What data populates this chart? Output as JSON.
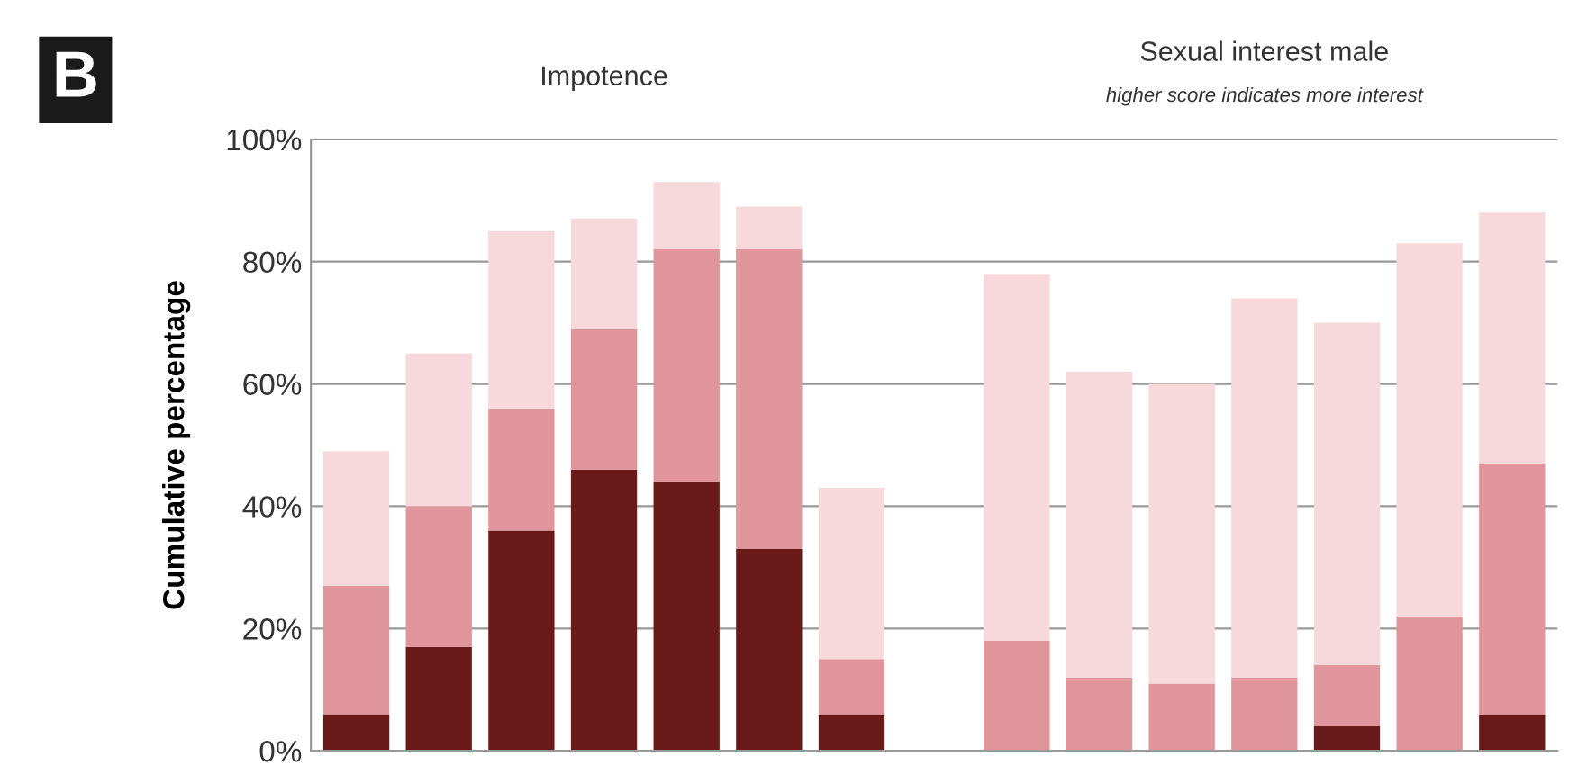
{
  "chart_data": {
    "type": "bar",
    "stacked": true,
    "ylabel": "Cumulative percentage",
    "annotations": [
      "B",
      "Impotence",
      "Sexual interest male",
      "higher score indicates more interest"
    ],
    "categories": [
      null,
      null,
      null,
      null,
      null,
      null,
      null,
      null,
      null,
      null,
      null,
      null,
      null,
      null,
      null
    ],
    "series": [
      {
        "color": "#6b1a1a",
        "values": [
          6,
          17,
          36,
          46,
          44,
          33,
          6,
          null,
          0,
          0,
          0,
          0,
          4,
          0,
          6
        ]
      },
      {
        "color": "#e0959a",
        "values": [
          21,
          23,
          20,
          23,
          38,
          49,
          9,
          null,
          18,
          12,
          11,
          12,
          10,
          22,
          41
        ]
      },
      {
        "color": "#f7d9dc",
        "values": [
          22,
          25,
          29,
          18,
          11,
          7,
          28,
          null,
          60,
          50,
          49,
          62,
          56,
          61,
          41
        ]
      }
    ],
    "ylim": [
      0,
      100
    ],
    "yticks": [
      {
        "value": 0,
        "label": "0%"
      },
      {
        "value": 20,
        "label": "20%"
      },
      {
        "value": 40,
        "label": "40%"
      },
      {
        "value": 60,
        "label": "60%"
      },
      {
        "value": 80,
        "label": "80%"
      },
      {
        "value": 100,
        "label": "100%"
      }
    ],
    "grid": "y",
    "tick_labels": "y"
  }
}
